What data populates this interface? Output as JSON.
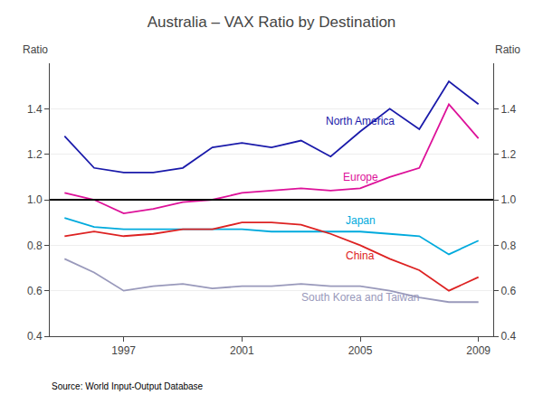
{
  "chart_data": {
    "type": "line",
    "title": "Australia – VAX Ratio by Destination",
    "ylabel": "Ratio",
    "y2label": "Ratio",
    "source": "Source: World Input-Output Database",
    "x": [
      1995,
      1996,
      1997,
      1998,
      1999,
      2000,
      2001,
      2002,
      2003,
      2004,
      2005,
      2006,
      2007,
      2008,
      2009
    ],
    "series": [
      {
        "name": "North America",
        "color": "#1a1aaa",
        "values": [
          1.28,
          1.14,
          1.12,
          1.12,
          1.14,
          1.23,
          1.25,
          1.23,
          1.26,
          1.19,
          1.3,
          1.4,
          1.31,
          1.52,
          1.42
        ]
      },
      {
        "name": "Europe",
        "color": "#dd1199",
        "values": [
          1.03,
          1.0,
          0.94,
          0.96,
          0.99,
          1.0,
          1.03,
          1.04,
          1.05,
          1.04,
          1.05,
          1.1,
          1.14,
          1.42,
          1.27
        ]
      },
      {
        "name": "Japan",
        "color": "#00aadd",
        "values": [
          0.92,
          0.88,
          0.87,
          0.87,
          0.87,
          0.87,
          0.87,
          0.86,
          0.86,
          0.86,
          0.86,
          0.85,
          0.84,
          0.76,
          0.82
        ]
      },
      {
        "name": "China",
        "color": "#dd2222",
        "values": [
          0.84,
          0.86,
          0.84,
          0.85,
          0.87,
          0.87,
          0.9,
          0.9,
          0.89,
          0.85,
          0.8,
          0.74,
          0.69,
          0.6,
          0.66
        ]
      },
      {
        "name": "South Korea and Taiwan",
        "color": "#9999bb",
        "values": [
          0.74,
          0.68,
          0.6,
          0.62,
          0.63,
          0.61,
          0.62,
          0.62,
          0.63,
          0.62,
          0.62,
          0.6,
          0.57,
          0.55,
          0.55
        ]
      }
    ],
    "hline": 1.0,
    "xlim": [
      1994.5,
      2009.5
    ],
    "xticks": [
      1997,
      2001,
      2005,
      2009
    ],
    "ylim": [
      0.4,
      1.6
    ],
    "yticks": [
      0.4,
      0.6,
      0.8,
      {
        "value": 1.0,
        "label": "1.0"
      },
      1.2,
      1.4
    ],
    "y2lim": [
      0.4,
      1.6
    ],
    "y2ticks": [
      0.4,
      0.6,
      0.8,
      {
        "value": 1.0,
        "label": "1.0"
      },
      1.2,
      1.4
    ],
    "grid": "y"
  }
}
